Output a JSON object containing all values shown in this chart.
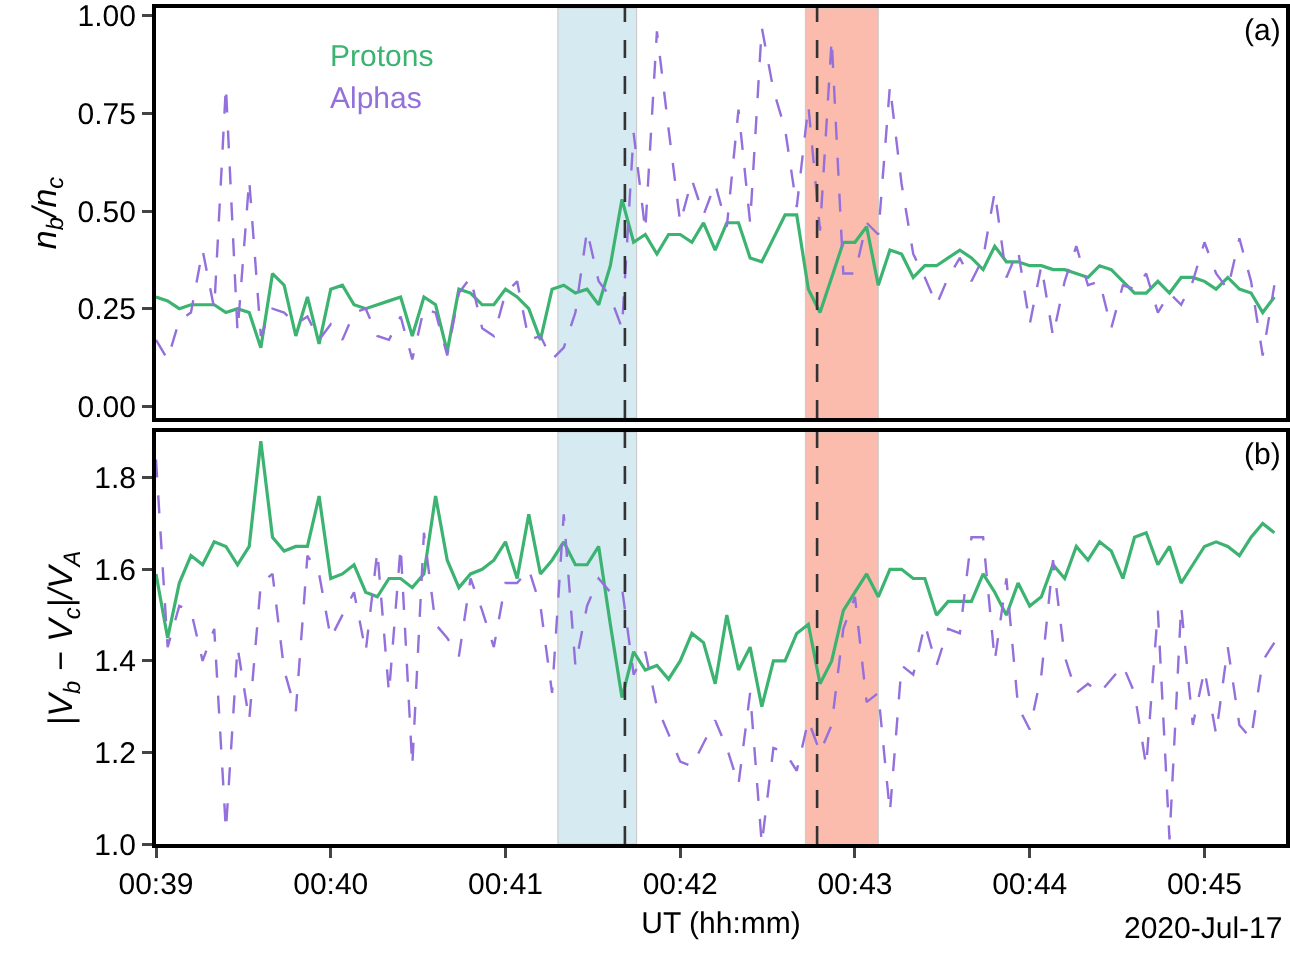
{
  "chart_data": [
    {
      "type": "line",
      "ylabel": "n$_{b}$/n$_{c}$",
      "annotations": [
        "(a)"
      ],
      "legend": "top left",
      "tick_labels": "y",
      "x": [
        "2020-07-17T00:39:00",
        "2020-07-17T00:39:04",
        "2020-07-17T00:39:08",
        "2020-07-17T00:39:12",
        "2020-07-17T00:39:16",
        "2020-07-17T00:39:20",
        "2020-07-17T00:39:24",
        "2020-07-17T00:39:28",
        "2020-07-17T00:39:32",
        "2020-07-17T00:39:36",
        "2020-07-17T00:39:40",
        "2020-07-17T00:39:44",
        "2020-07-17T00:39:48",
        "2020-07-17T00:39:52",
        "2020-07-17T00:39:56",
        "2020-07-17T00:40:00",
        "2020-07-17T00:40:04",
        "2020-07-17T00:40:08",
        "2020-07-17T00:40:12",
        "2020-07-17T00:40:16",
        "2020-07-17T00:40:20",
        "2020-07-17T00:40:24",
        "2020-07-17T00:40:28",
        "2020-07-17T00:40:32",
        "2020-07-17T00:40:36",
        "2020-07-17T00:40:40",
        "2020-07-17T00:40:44",
        "2020-07-17T00:40:48",
        "2020-07-17T00:40:52",
        "2020-07-17T00:40:56",
        "2020-07-17T00:41:00",
        "2020-07-17T00:41:04",
        "2020-07-17T00:41:08",
        "2020-07-17T00:41:12",
        "2020-07-17T00:41:16",
        "2020-07-17T00:41:20",
        "2020-07-17T00:41:24",
        "2020-07-17T00:41:28",
        "2020-07-17T00:41:32",
        "2020-07-17T00:41:36",
        "2020-07-17T00:41:40",
        "2020-07-17T00:41:44",
        "2020-07-17T00:41:48",
        "2020-07-17T00:41:52",
        "2020-07-17T00:41:56",
        "2020-07-17T00:42:00",
        "2020-07-17T00:42:04",
        "2020-07-17T00:42:08",
        "2020-07-17T00:42:12",
        "2020-07-17T00:42:16",
        "2020-07-17T00:42:20",
        "2020-07-17T00:42:24",
        "2020-07-17T00:42:28",
        "2020-07-17T00:42:32",
        "2020-07-17T00:42:36",
        "2020-07-17T00:42:40",
        "2020-07-17T00:42:44",
        "2020-07-17T00:42:48",
        "2020-07-17T00:42:52",
        "2020-07-17T00:42:56",
        "2020-07-17T00:43:00",
        "2020-07-17T00:43:04",
        "2020-07-17T00:43:08",
        "2020-07-17T00:43:12",
        "2020-07-17T00:43:16",
        "2020-07-17T00:43:20",
        "2020-07-17T00:43:24",
        "2020-07-17T00:43:28",
        "2020-07-17T00:43:32",
        "2020-07-17T00:43:36",
        "2020-07-17T00:43:40",
        "2020-07-17T00:43:44",
        "2020-07-17T00:43:48",
        "2020-07-17T00:43:52",
        "2020-07-17T00:43:56",
        "2020-07-17T00:44:00",
        "2020-07-17T00:44:04",
        "2020-07-17T00:44:08",
        "2020-07-17T00:44:12",
        "2020-07-17T00:44:16",
        "2020-07-17T00:44:20",
        "2020-07-17T00:44:24",
        "2020-07-17T00:44:28",
        "2020-07-17T00:44:32",
        "2020-07-17T00:44:36",
        "2020-07-17T00:44:40",
        "2020-07-17T00:44:44",
        "2020-07-17T00:44:48",
        "2020-07-17T00:44:52",
        "2020-07-17T00:44:56",
        "2020-07-17T00:45:00",
        "2020-07-17T00:45:04",
        "2020-07-17T00:45:08",
        "2020-07-17T00:45:12",
        "2020-07-17T00:45:16",
        "2020-07-17T00:45:20",
        "2020-07-17T00:45:24"
      ],
      "xlim": [
        "2020-07-17T00:39:00",
        "2020-07-17T00:45:28"
      ],
      "ylim": [
        -0.03,
        1.02
      ],
      "yticks": [
        {
          "value": 0,
          "label": "0.00"
        },
        {
          "value": 0.25,
          "label": "0.25"
        },
        {
          "value": 0.5,
          "label": "0.50"
        },
        {
          "value": 0.75,
          "label": "0.75"
        },
        {
          "value": 1,
          "label": "1.00"
        }
      ],
      "bands": [
        {
          "axis": "x",
          "from": "2020-07-17T00:41:18",
          "to": "2020-07-17T00:41:45",
          "color": "#d6eaf2"
        },
        {
          "axis": "x",
          "from": "2020-07-17T00:42:43",
          "to": "2020-07-17T00:43:08",
          "color": "#fbbcae"
        }
      ],
      "ref_lines": [
        {
          "axis": "x",
          "value": "2020-07-17T00:41:41",
          "color": "#333333",
          "line_style": "dashed"
        },
        {
          "axis": "x",
          "value": "2020-07-17T00:42:47",
          "color": "#333333",
          "line_style": "dashed"
        }
      ],
      "series": [
        {
          "name": "Protons",
          "color": "#3cb371",
          "line_style": "solid",
          "values": [
            0.28,
            0.27,
            0.25,
            0.26,
            0.26,
            0.26,
            0.24,
            0.25,
            0.24,
            0.15,
            0.34,
            0.31,
            0.18,
            0.28,
            0.16,
            0.3,
            0.31,
            0.26,
            0.25,
            0.26,
            0.27,
            0.28,
            0.18,
            0.28,
            0.26,
            0.14,
            0.3,
            0.29,
            0.26,
            0.26,
            0.3,
            0.28,
            0.25,
            0.17,
            0.3,
            0.31,
            0.29,
            0.3,
            0.26,
            0.36,
            0.53,
            0.42,
            0.44,
            0.39,
            0.44,
            0.44,
            0.42,
            0.47,
            0.4,
            0.47,
            0.47,
            0.38,
            0.37,
            0.43,
            0.49,
            0.49,
            0.3,
            0.24,
            0.33,
            0.42,
            0.42,
            0.46,
            0.31,
            0.4,
            0.39,
            0.33,
            0.36,
            0.36,
            0.38,
            0.4,
            0.38,
            0.35,
            0.41,
            0.37,
            0.37,
            0.36,
            0.36,
            0.35,
            0.35,
            0.34,
            0.33,
            0.36,
            0.35,
            0.32,
            0.29,
            0.29,
            0.32,
            0.29,
            0.33,
            0.33,
            0.32,
            0.3,
            0.33,
            0.3,
            0.29,
            0.24,
            0.28
          ]
        },
        {
          "name": "Alphas",
          "color": "#9370db",
          "line_style": "dashed",
          "values": [
            0.17,
            0.12,
            0.22,
            0.24,
            0.4,
            0.25,
            0.82,
            0.19,
            0.58,
            0.18,
            0.25,
            0.24,
            0.21,
            0.23,
            0.17,
            0.21,
            0.17,
            0.24,
            0.25,
            0.18,
            0.17,
            0.23,
            0.12,
            0.25,
            0.24,
            0.13,
            0.29,
            0.33,
            0.2,
            0.18,
            0.29,
            0.32,
            0.17,
            0.18,
            0.12,
            0.15,
            0.24,
            0.45,
            0.32,
            0.28,
            0.2,
            0.7,
            0.45,
            0.96,
            0.71,
            0.47,
            0.58,
            0.49,
            0.57,
            0.46,
            0.76,
            0.47,
            0.97,
            0.81,
            0.71,
            0.51,
            0.77,
            0.45,
            0.94,
            0.34,
            0.34,
            0.47,
            0.44,
            0.82,
            0.57,
            0.39,
            0.33,
            0.26,
            0.33,
            0.38,
            0.32,
            0.38,
            0.55,
            0.33,
            0.4,
            0.21,
            0.36,
            0.18,
            0.32,
            0.41,
            0.31,
            0.32,
            0.2,
            0.31,
            0.3,
            0.34,
            0.24,
            0.29,
            0.26,
            0.32,
            0.42,
            0.34,
            0.3,
            0.43,
            0.32,
            0.13,
            0.31
          ]
        }
      ]
    },
    {
      "type": "line",
      "ylabel": "|V$_{b}$ − V$_{c}$|/V$_{A}$",
      "xlabel": "UT (hh:mm)",
      "annotations": [
        "(b)",
        "2020-Jul-17"
      ],
      "x": [
        "2020-07-17T00:39:00",
        "2020-07-17T00:39:04",
        "2020-07-17T00:39:08",
        "2020-07-17T00:39:12",
        "2020-07-17T00:39:16",
        "2020-07-17T00:39:20",
        "2020-07-17T00:39:24",
        "2020-07-17T00:39:28",
        "2020-07-17T00:39:32",
        "2020-07-17T00:39:36",
        "2020-07-17T00:39:40",
        "2020-07-17T00:39:44",
        "2020-07-17T00:39:48",
        "2020-07-17T00:39:52",
        "2020-07-17T00:39:56",
        "2020-07-17T00:40:00",
        "2020-07-17T00:40:04",
        "2020-07-17T00:40:08",
        "2020-07-17T00:40:12",
        "2020-07-17T00:40:16",
        "2020-07-17T00:40:20",
        "2020-07-17T00:40:24",
        "2020-07-17T00:40:28",
        "2020-07-17T00:40:32",
        "2020-07-17T00:40:36",
        "2020-07-17T00:40:40",
        "2020-07-17T00:40:44",
        "2020-07-17T00:40:48",
        "2020-07-17T00:40:52",
        "2020-07-17T00:40:56",
        "2020-07-17T00:41:00",
        "2020-07-17T00:41:04",
        "2020-07-17T00:41:08",
        "2020-07-17T00:41:12",
        "2020-07-17T00:41:16",
        "2020-07-17T00:41:20",
        "2020-07-17T00:41:24",
        "2020-07-17T00:41:28",
        "2020-07-17T00:41:32",
        "2020-07-17T00:41:36",
        "2020-07-17T00:41:40",
        "2020-07-17T00:41:44",
        "2020-07-17T00:41:48",
        "2020-07-17T00:41:52",
        "2020-07-17T00:41:56",
        "2020-07-17T00:42:00",
        "2020-07-17T00:42:04",
        "2020-07-17T00:42:08",
        "2020-07-17T00:42:12",
        "2020-07-17T00:42:16",
        "2020-07-17T00:42:20",
        "2020-07-17T00:42:24",
        "2020-07-17T00:42:28",
        "2020-07-17T00:42:32",
        "2020-07-17T00:42:36",
        "2020-07-17T00:42:40",
        "2020-07-17T00:42:44",
        "2020-07-17T00:42:48",
        "2020-07-17T00:42:52",
        "2020-07-17T00:42:56",
        "2020-07-17T00:43:00",
        "2020-07-17T00:43:04",
        "2020-07-17T00:43:08",
        "2020-07-17T00:43:12",
        "2020-07-17T00:43:16",
        "2020-07-17T00:43:20",
        "2020-07-17T00:43:24",
        "2020-07-17T00:43:28",
        "2020-07-17T00:43:32",
        "2020-07-17T00:43:36",
        "2020-07-17T00:43:40",
        "2020-07-17T00:43:44",
        "2020-07-17T00:43:48",
        "2020-07-17T00:43:52",
        "2020-07-17T00:43:56",
        "2020-07-17T00:44:00",
        "2020-07-17T00:44:04",
        "2020-07-17T00:44:08",
        "2020-07-17T00:44:12",
        "2020-07-17T00:44:16",
        "2020-07-17T00:44:20",
        "2020-07-17T00:44:24",
        "2020-07-17T00:44:28",
        "2020-07-17T00:44:32",
        "2020-07-17T00:44:36",
        "2020-07-17T00:44:40",
        "2020-07-17T00:44:44",
        "2020-07-17T00:44:48",
        "2020-07-17T00:44:52",
        "2020-07-17T00:44:56",
        "2020-07-17T00:45:00",
        "2020-07-17T00:45:04",
        "2020-07-17T00:45:08",
        "2020-07-17T00:45:12",
        "2020-07-17T00:45:16",
        "2020-07-17T00:45:20",
        "2020-07-17T00:45:24"
      ],
      "xlim": [
        "2020-07-17T00:39:00",
        "2020-07-17T00:45:28"
      ],
      "xticks": [
        {
          "value": "2020-07-17T00:39",
          "label": "00:39"
        },
        {
          "value": "2020-07-17T00:40",
          "label": "00:40"
        },
        {
          "value": "2020-07-17T00:41",
          "label": "00:41"
        },
        {
          "value": "2020-07-17T00:42",
          "label": "00:42"
        },
        {
          "value": "2020-07-17T00:43",
          "label": "00:43"
        },
        {
          "value": "2020-07-17T00:44",
          "label": "00:44"
        },
        {
          "value": "2020-07-17T00:45",
          "label": "00:45"
        }
      ],
      "ylim": [
        1.0,
        1.9
      ],
      "yticks": [
        {
          "value": 1,
          "label": "1.0"
        },
        {
          "value": 1.2,
          "label": "1.2"
        },
        {
          "value": 1.4,
          "label": "1.4"
        },
        {
          "value": 1.6,
          "label": "1.6"
        },
        {
          "value": 1.8,
          "label": "1.8"
        }
      ],
      "bands": [
        {
          "axis": "x",
          "from": "2020-07-17T00:41:18",
          "to": "2020-07-17T00:41:45",
          "color": "#d6eaf2"
        },
        {
          "axis": "x",
          "from": "2020-07-17T00:42:43",
          "to": "2020-07-17T00:43:08",
          "color": "#fbbcae"
        }
      ],
      "ref_lines": [
        {
          "axis": "x",
          "value": "2020-07-17T00:41:41",
          "color": "#333333",
          "line_style": "dashed"
        },
        {
          "axis": "x",
          "value": "2020-07-17T00:42:47",
          "color": "#333333",
          "line_style": "dashed"
        }
      ],
      "series": [
        {
          "color": "#3cb371",
          "line_style": "solid",
          "values": [
            1.59,
            1.45,
            1.57,
            1.63,
            1.61,
            1.66,
            1.65,
            1.61,
            1.65,
            1.88,
            1.67,
            1.64,
            1.65,
            1.65,
            1.76,
            1.58,
            1.59,
            1.61,
            1.55,
            1.54,
            1.58,
            1.58,
            1.56,
            1.59,
            1.76,
            1.62,
            1.56,
            1.59,
            1.6,
            1.62,
            1.66,
            1.58,
            1.72,
            1.59,
            1.62,
            1.66,
            1.61,
            1.61,
            1.65,
            1.48,
            1.32,
            1.42,
            1.38,
            1.39,
            1.36,
            1.4,
            1.46,
            1.44,
            1.35,
            1.5,
            1.38,
            1.43,
            1.3,
            1.4,
            1.4,
            1.46,
            1.48,
            1.35,
            1.4,
            1.51,
            1.55,
            1.59,
            1.54,
            1.6,
            1.6,
            1.58,
            1.58,
            1.5,
            1.53,
            1.53,
            1.53,
            1.59,
            1.55,
            1.5,
            1.57,
            1.52,
            1.54,
            1.61,
            1.58,
            1.65,
            1.62,
            1.66,
            1.64,
            1.58,
            1.67,
            1.68,
            1.61,
            1.65,
            1.57,
            1.61,
            1.65,
            1.66,
            1.65,
            1.63,
            1.67,
            1.7,
            1.68
          ]
        },
        {
          "color": "#9370db",
          "line_style": "dashed",
          "values": [
            1.84,
            1.43,
            1.52,
            1.51,
            1.4,
            1.47,
            1.03,
            1.43,
            1.27,
            1.57,
            1.59,
            1.38,
            1.29,
            1.63,
            1.59,
            1.45,
            1.5,
            1.55,
            1.42,
            1.64,
            1.33,
            1.65,
            1.17,
            1.68,
            1.48,
            1.45,
            1.41,
            1.58,
            1.51,
            1.43,
            1.57,
            1.57,
            1.6,
            1.52,
            1.33,
            1.72,
            1.39,
            1.52,
            1.58,
            1.55,
            1.56,
            1.37,
            1.42,
            1.3,
            1.24,
            1.18,
            1.17,
            1.22,
            1.27,
            1.21,
            1.13,
            1.33,
            1.0,
            1.21,
            1.2,
            1.16,
            1.27,
            1.2,
            1.26,
            1.47,
            1.54,
            1.31,
            1.33,
            1.07,
            1.39,
            1.37,
            1.48,
            1.39,
            1.47,
            1.46,
            1.67,
            1.67,
            1.4,
            1.58,
            1.3,
            1.25,
            1.37,
            1.62,
            1.41,
            1.33,
            1.35,
            1.33,
            1.36,
            1.39,
            1.33,
            1.17,
            1.51,
            1.01,
            1.52,
            1.26,
            1.38,
            1.24,
            1.43,
            1.26,
            1.23,
            1.4,
            1.44
          ]
        }
      ]
    }
  ]
}
